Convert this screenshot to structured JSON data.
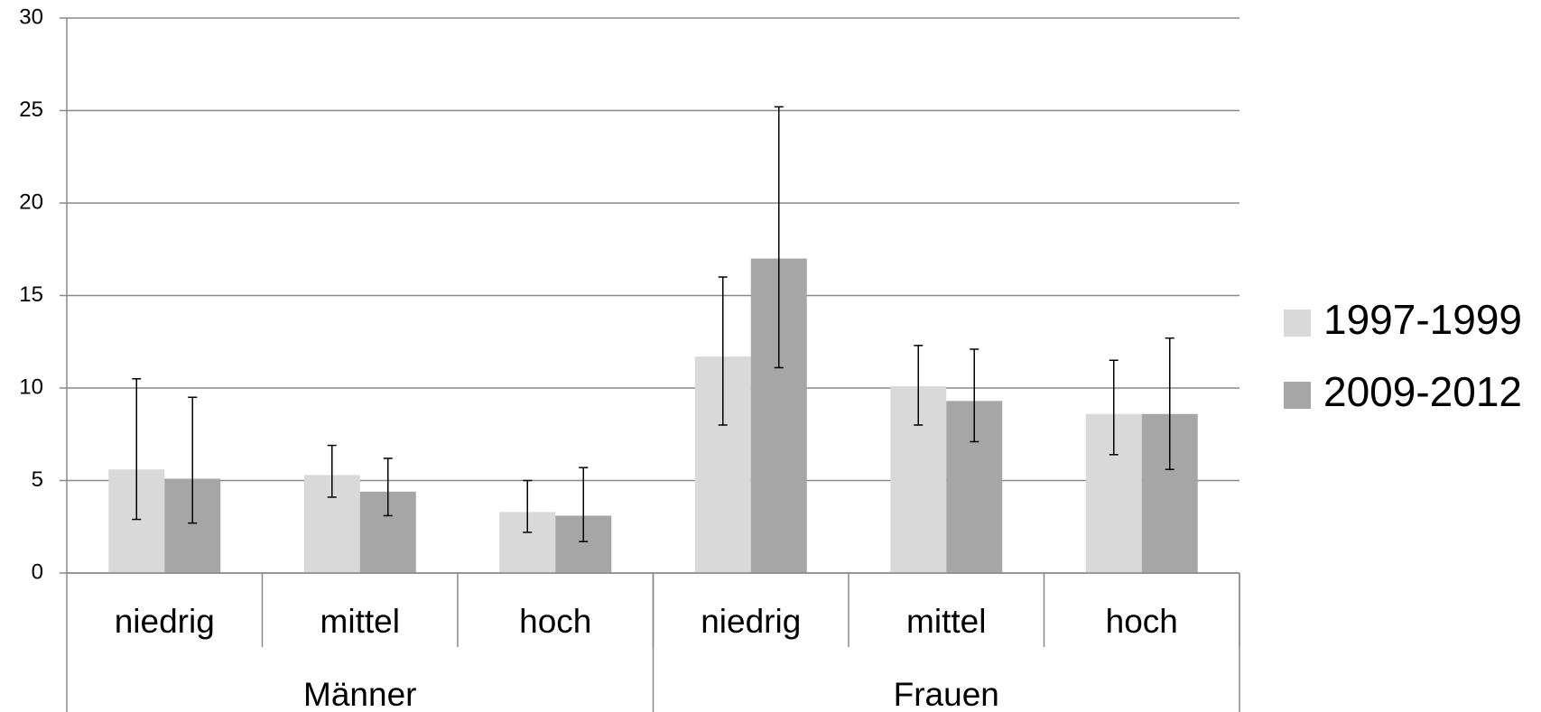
{
  "chart_data": {
    "type": "bar",
    "categories": [
      "niedrig",
      "mittel",
      "hoch",
      "niedrig",
      "mittel",
      "hoch"
    ],
    "groups": [
      {
        "name": "Männer",
        "span": 3
      },
      {
        "name": "Frauen",
        "span": 3
      }
    ],
    "series": [
      {
        "name": "1997-1999",
        "color": "#d9d9d9",
        "values": [
          5.6,
          5.3,
          3.3,
          11.7,
          10.1,
          8.6
        ],
        "ci_low": [
          2.9,
          4.1,
          2.2,
          8.0,
          8.0,
          6.4
        ],
        "ci_high": [
          10.5,
          6.9,
          5.0,
          16.0,
          12.3,
          11.5
        ]
      },
      {
        "name": "2009-2012",
        "color": "#a6a6a6",
        "values": [
          5.1,
          4.4,
          3.1,
          17.0,
          9.3,
          8.6
        ],
        "ci_low": [
          2.7,
          3.1,
          1.7,
          11.1,
          7.1,
          5.6
        ],
        "ci_high": [
          9.5,
          6.2,
          5.7,
          25.2,
          12.1,
          12.7
        ]
      }
    ],
    "ylim": [
      0,
      30
    ],
    "yticks": [
      0,
      5,
      10,
      15,
      20,
      25,
      30
    ],
    "grid": true,
    "legend": "right"
  }
}
